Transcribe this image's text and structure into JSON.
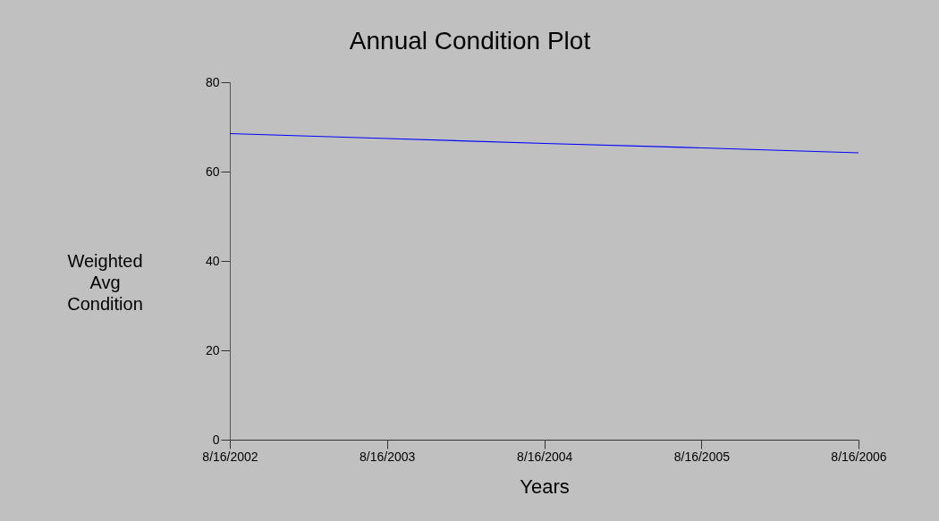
{
  "chart_data": {
    "type": "line",
    "title": "Annual Condition Plot",
    "xlabel": "Years",
    "ylabel": "Weighted Avg Condition",
    "x": [
      "2002-08-16",
      "2003-08-16",
      "2004-08-16",
      "2005-08-16",
      "2006-08-16"
    ],
    "series": [
      {
        "color": "#0000ff",
        "values": [
          68.5,
          67.4,
          66.3,
          65.3,
          64.2
        ]
      }
    ],
    "xlim": [
      "2002-08-16",
      "2006-08-16"
    ],
    "xticks": [
      {
        "value": "2002-08-16",
        "label": "8/16/2002"
      },
      {
        "value": "2003-08-16",
        "label": "8/16/2003"
      },
      {
        "value": "2004-08-16",
        "label": "8/16/2004"
      },
      {
        "value": "2005-08-16",
        "label": "8/16/2005"
      },
      {
        "value": "2006-08-16",
        "label": "8/16/2006"
      }
    ],
    "ylim": [
      0,
      80
    ],
    "yticks": [
      0,
      20,
      40,
      60,
      80
    ],
    "grid": false,
    "marker": "none",
    "line_style": "solid"
  }
}
